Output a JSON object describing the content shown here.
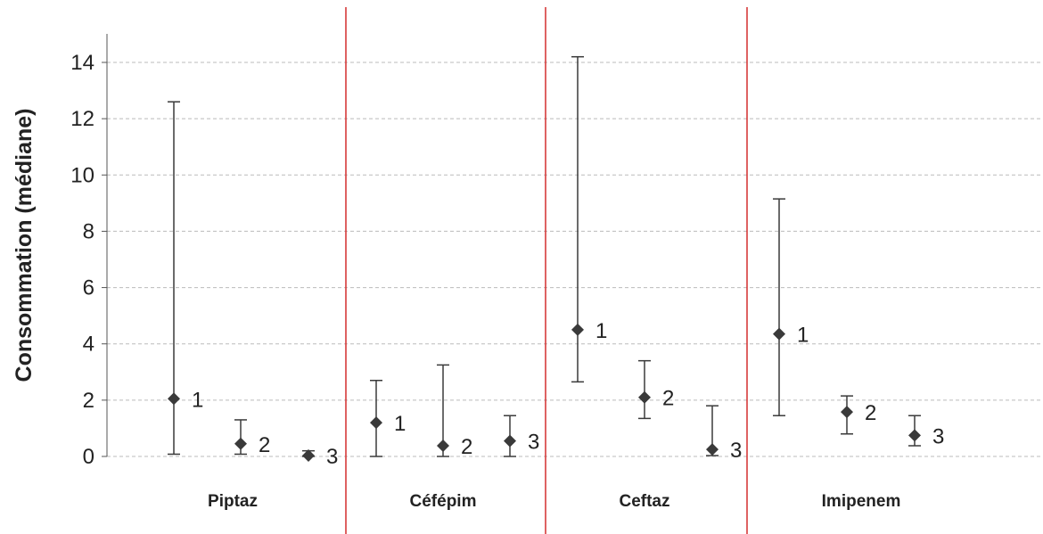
{
  "chart_data": {
    "type": "scatter",
    "title": "",
    "xlabel": "",
    "ylabel": "Consommation (médiane)",
    "ylim": [
      0,
      15
    ],
    "yticks": [
      0,
      2,
      4,
      6,
      8,
      10,
      12,
      14
    ],
    "grid": "horizontal dashed",
    "legend": "none",
    "groups": [
      {
        "category": "Piptaz",
        "points": [
          {
            "label": "1",
            "median": 2.05,
            "low": 0.08,
            "high": 12.6
          },
          {
            "label": "2",
            "median": 0.45,
            "low": 0.08,
            "high": 1.3
          },
          {
            "label": "3",
            "median": 0.03,
            "low": 0.0,
            "high": 0.2
          }
        ]
      },
      {
        "category": "Céfépim",
        "points": [
          {
            "label": "1",
            "median": 1.2,
            "low": 0.0,
            "high": 2.7
          },
          {
            "label": "2",
            "median": 0.38,
            "low": 0.0,
            "high": 3.25
          },
          {
            "label": "3",
            "median": 0.55,
            "low": 0.0,
            "high": 1.45
          }
        ]
      },
      {
        "category": "Ceftaz",
        "points": [
          {
            "label": "1",
            "median": 4.5,
            "low": 2.65,
            "high": 14.2
          },
          {
            "label": "2",
            "median": 2.1,
            "low": 1.35,
            "high": 3.4
          },
          {
            "label": "3",
            "median": 0.25,
            "low": 0.03,
            "high": 1.8
          }
        ]
      },
      {
        "category": "Imipenem",
        "points": [
          {
            "label": "1",
            "median": 4.35,
            "low": 1.45,
            "high": 9.15
          },
          {
            "label": "2",
            "median": 1.58,
            "low": 0.8,
            "high": 2.15
          },
          {
            "label": "3",
            "median": 0.75,
            "low": 0.38,
            "high": 1.45
          }
        ]
      }
    ],
    "colors": {
      "marker": "#3a3a3a",
      "errorbar": "#3a3a3a",
      "separator": "#d32f2f",
      "grid": "#bbbbbb",
      "axis": "#555555"
    }
  }
}
